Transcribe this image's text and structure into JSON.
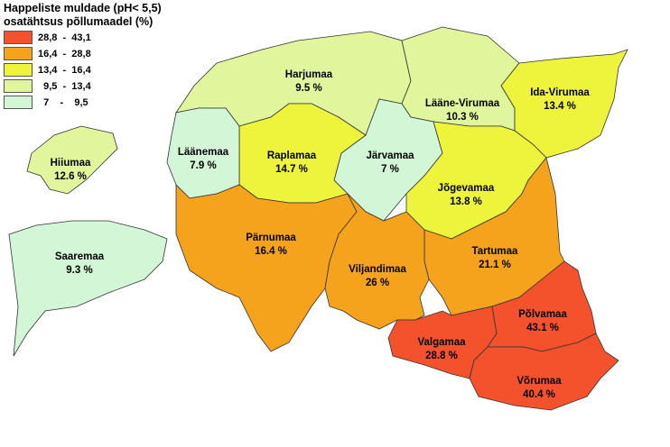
{
  "legend": {
    "title_line1": "Happeliste muldade (pH< 5,5)",
    "title_line2": "osatähtsus põllumaadel (%)",
    "classes": [
      {
        "range": "28,8  -  43,1",
        "color": "#f4522c"
      },
      {
        "range": "16,4  -  28,8",
        "color": "#f5a31c"
      },
      {
        "range": "13,4  -  16,4",
        "color": "#eef43c"
      },
      {
        "range": "  9,5  -  13,4",
        "color": "#e0f59c"
      },
      {
        "range": "  7    -    9,5",
        "color": "#d2f6d6"
      }
    ]
  },
  "counties": [
    {
      "name": "Harjumaa",
      "value": "9.5 %",
      "class": 3
    },
    {
      "name": "Lääne-Virumaa",
      "value": "10.3 %",
      "class": 3
    },
    {
      "name": "Ida-Virumaa",
      "value": "13.4 %",
      "class": 2
    },
    {
      "name": "Järvamaa",
      "value": "7 %",
      "class": 4
    },
    {
      "name": "Raplamaa",
      "value": "14.7 %",
      "class": 2
    },
    {
      "name": "Läänemaa",
      "value": "7.9 %",
      "class": 4
    },
    {
      "name": "Jõgevamaa",
      "value": "13.8 %",
      "class": 2
    },
    {
      "name": "Tartumaa",
      "value": "21.1 %",
      "class": 1
    },
    {
      "name": "Pärnumaa",
      "value": "16.4 %",
      "class": 1
    },
    {
      "name": "Viljandimaa",
      "value": "26 %",
      "class": 1
    },
    {
      "name": "Valgamaa",
      "value": "28.8 %",
      "class": 0
    },
    {
      "name": "Põlvamaa",
      "value": "43.1 %",
      "class": 0
    },
    {
      "name": "Võrumaa",
      "value": "40.4 %",
      "class": 0
    },
    {
      "name": "Hiiumaa",
      "value": "12.6 %",
      "class": 3
    },
    {
      "name": "Saaremaa",
      "value": "9.3 %",
      "class": 4
    }
  ]
}
